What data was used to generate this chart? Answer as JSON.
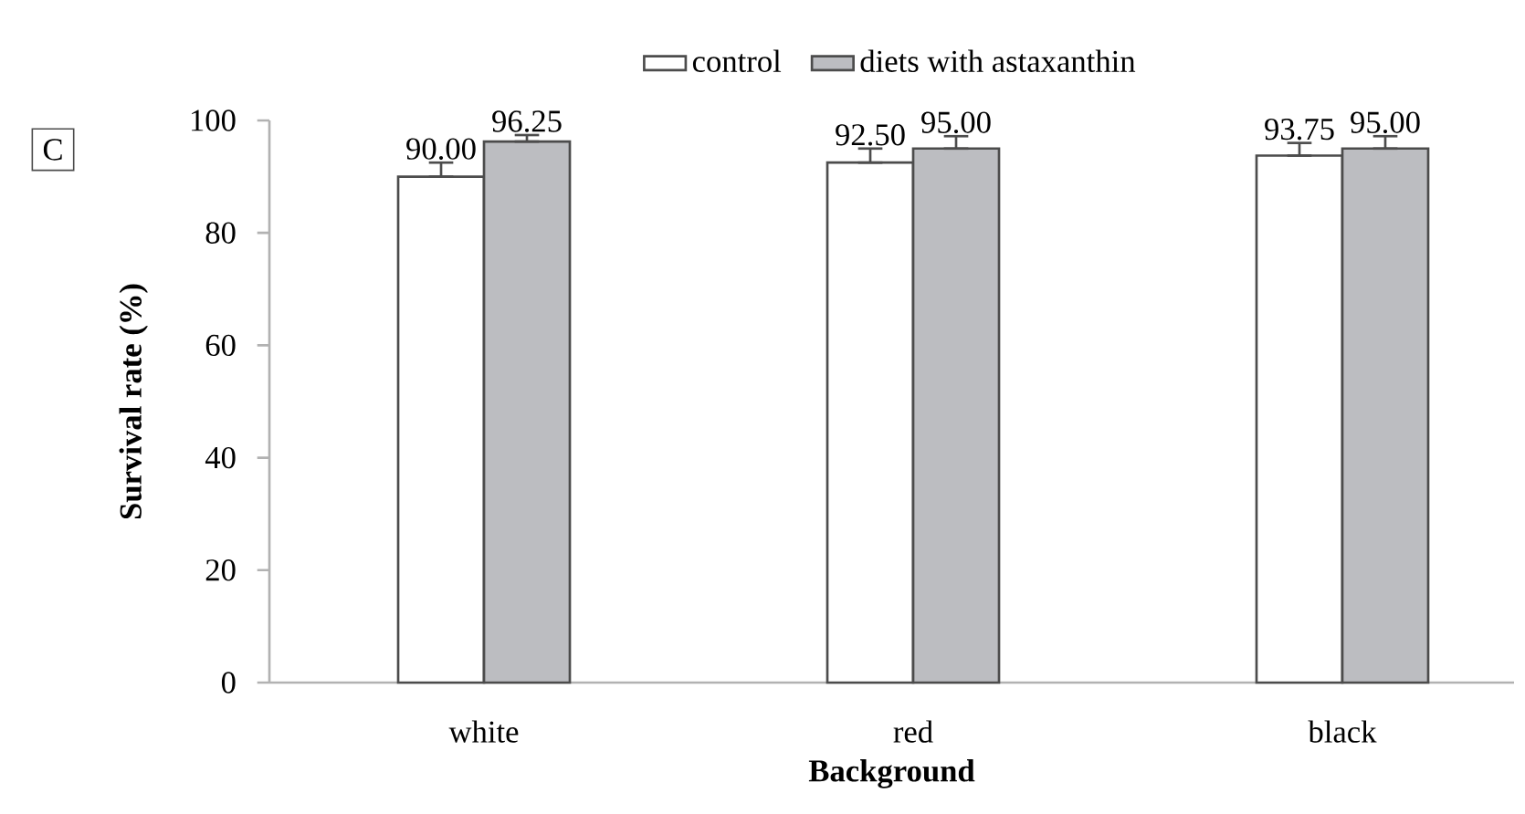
{
  "chart_data": {
    "type": "bar",
    "xlabel": "Background",
    "ylabel": "Survival rate (%)",
    "annotations": [
      "C"
    ],
    "categories": [
      "white",
      "red",
      "black"
    ],
    "series": [
      {
        "name": "control",
        "color": "#ffffff",
        "values": [
          90.0,
          92.5,
          93.75
        ],
        "errors": [
          [
            90.0,
            92.5
          ],
          [
            92.5,
            95.0
          ],
          [
            93.75,
            96.0
          ]
        ],
        "value_labels": [
          "90.00",
          "92.50",
          "93.75"
        ]
      },
      {
        "name": "diets with astaxanthin",
        "color": "#bcbdc1",
        "values": [
          96.25,
          95.0,
          95.0
        ],
        "errors": [
          [
            96.25,
            97.4
          ],
          [
            95.0,
            97.2
          ],
          [
            95.0,
            97.2
          ]
        ],
        "value_labels": [
          "96.25",
          "95.00",
          "95.00"
        ]
      }
    ],
    "ylim": [
      0,
      100
    ],
    "yticks": [
      0,
      20,
      40,
      60,
      80,
      100
    ],
    "grid": false,
    "legend": "top"
  }
}
